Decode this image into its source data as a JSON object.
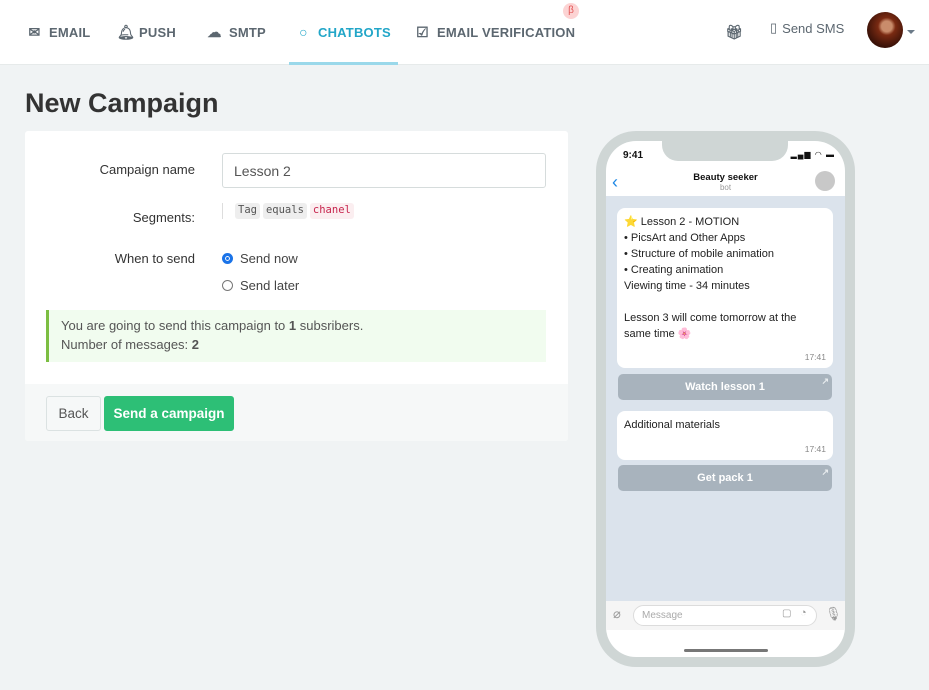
{
  "nav": {
    "tabs": [
      {
        "label": "EMAIL",
        "icon": "envelope-icon"
      },
      {
        "label": "PUSH",
        "icon": "bell-icon"
      },
      {
        "label": "SMTP",
        "icon": "cloud-upload-icon"
      },
      {
        "label": "CHATBOTS",
        "icon": "chat-bubble-icon",
        "active": true
      },
      {
        "label": "EMAIL VERIFICATION",
        "icon": "checkbox-icon",
        "badge": "β"
      }
    ],
    "send_sms": "Send SMS",
    "accent": "#22a6c8"
  },
  "page": {
    "title": "New Campaign"
  },
  "form": {
    "campaign_name_label": "Campaign name",
    "campaign_name_value": "Lesson 2",
    "segments_label": "Segments:",
    "segment": {
      "field": "Tag",
      "operator": "equals",
      "value": "chanel"
    },
    "when_label": "When to send",
    "options": [
      {
        "label": "Send now",
        "checked": true
      },
      {
        "label": "Send later",
        "checked": false
      }
    ],
    "info_pre": "You are going to send this campaign to ",
    "info_count": "1",
    "info_post": " subsribers.",
    "info_msgs_pre": "Number of messages: ",
    "info_msgs": "2",
    "back": "Back",
    "send": "Send a campaign",
    "send_color": "#2dbf76"
  },
  "phone": {
    "time": "9:41",
    "chat_title": "Beauty seeker",
    "chat_subtitle": "bot",
    "messages": [
      {
        "lines": [
          "⭐ Lesson 2 - MOTION",
          "• PicsArt and Other Apps",
          "• Structure of mobile animation",
          "• Creating animation",
          "Viewing time - 34 minutes",
          "",
          "Lesson 3 will come tomorrow at the same time 🌸"
        ],
        "time": "17:41",
        "button": "Watch lesson 1"
      },
      {
        "lines": [
          "Additional materials"
        ],
        "time": "17:41",
        "button": "Get pack 1"
      }
    ],
    "input_placeholder": "Message"
  }
}
